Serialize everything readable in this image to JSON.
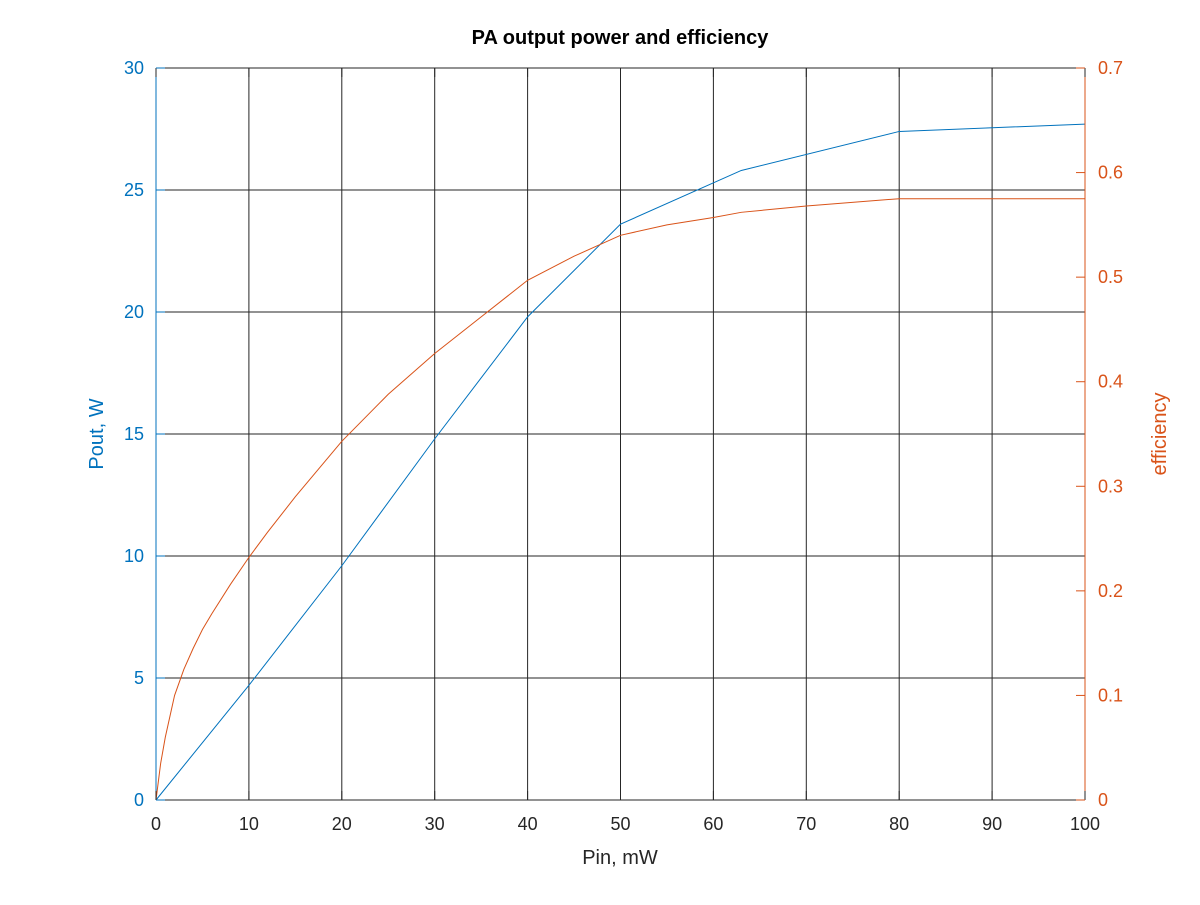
{
  "chart_data": {
    "type": "line",
    "title": "PA output power and efficiency",
    "xlabel": "Pin, mW",
    "ylabel_left": "Pout, W",
    "ylabel_right": "efficiency",
    "xlim": [
      0,
      100
    ],
    "ylim_left": [
      0,
      30
    ],
    "ylim_right": [
      0,
      0.7
    ],
    "xticks": [
      "0",
      "10",
      "20",
      "30",
      "40",
      "50",
      "60",
      "70",
      "80",
      "90",
      "100"
    ],
    "yticks_left": [
      "0",
      "5",
      "10",
      "15",
      "20",
      "25",
      "30"
    ],
    "yticks_right": [
      "0",
      "0.1",
      "0.2",
      "0.3",
      "0.4",
      "0.5",
      "0.6",
      "0.7"
    ],
    "grid": true,
    "grid_note": "horizontal gridlines follow the left axis",
    "colors": {
      "left_axis": "#0072BD",
      "right_axis": "#D95319",
      "grid": "#262626"
    },
    "series": [
      {
        "axis": "left",
        "color": "#0072BD",
        "x": [
          0,
          10,
          20,
          30,
          40,
          50,
          63,
          80,
          100
        ],
        "y": [
          0,
          4.7,
          9.6,
          14.8,
          19.8,
          23.6,
          25.8,
          27.4,
          27.7
        ]
      },
      {
        "axis": "right",
        "color": "#D95319",
        "x": [
          0,
          0.5,
          1,
          2,
          3,
          4,
          5,
          6,
          8,
          10,
          12,
          15,
          20,
          25,
          30,
          35,
          40,
          45,
          50,
          55,
          60,
          63,
          70,
          80,
          90,
          100
        ],
        "y": [
          0,
          0.035,
          0.06,
          0.1,
          0.125,
          0.145,
          0.163,
          0.178,
          0.206,
          0.232,
          0.256,
          0.29,
          0.343,
          0.388,
          0.427,
          0.462,
          0.497,
          0.52,
          0.54,
          0.55,
          0.557,
          0.562,
          0.568,
          0.575,
          0.575,
          0.575
        ]
      }
    ]
  }
}
